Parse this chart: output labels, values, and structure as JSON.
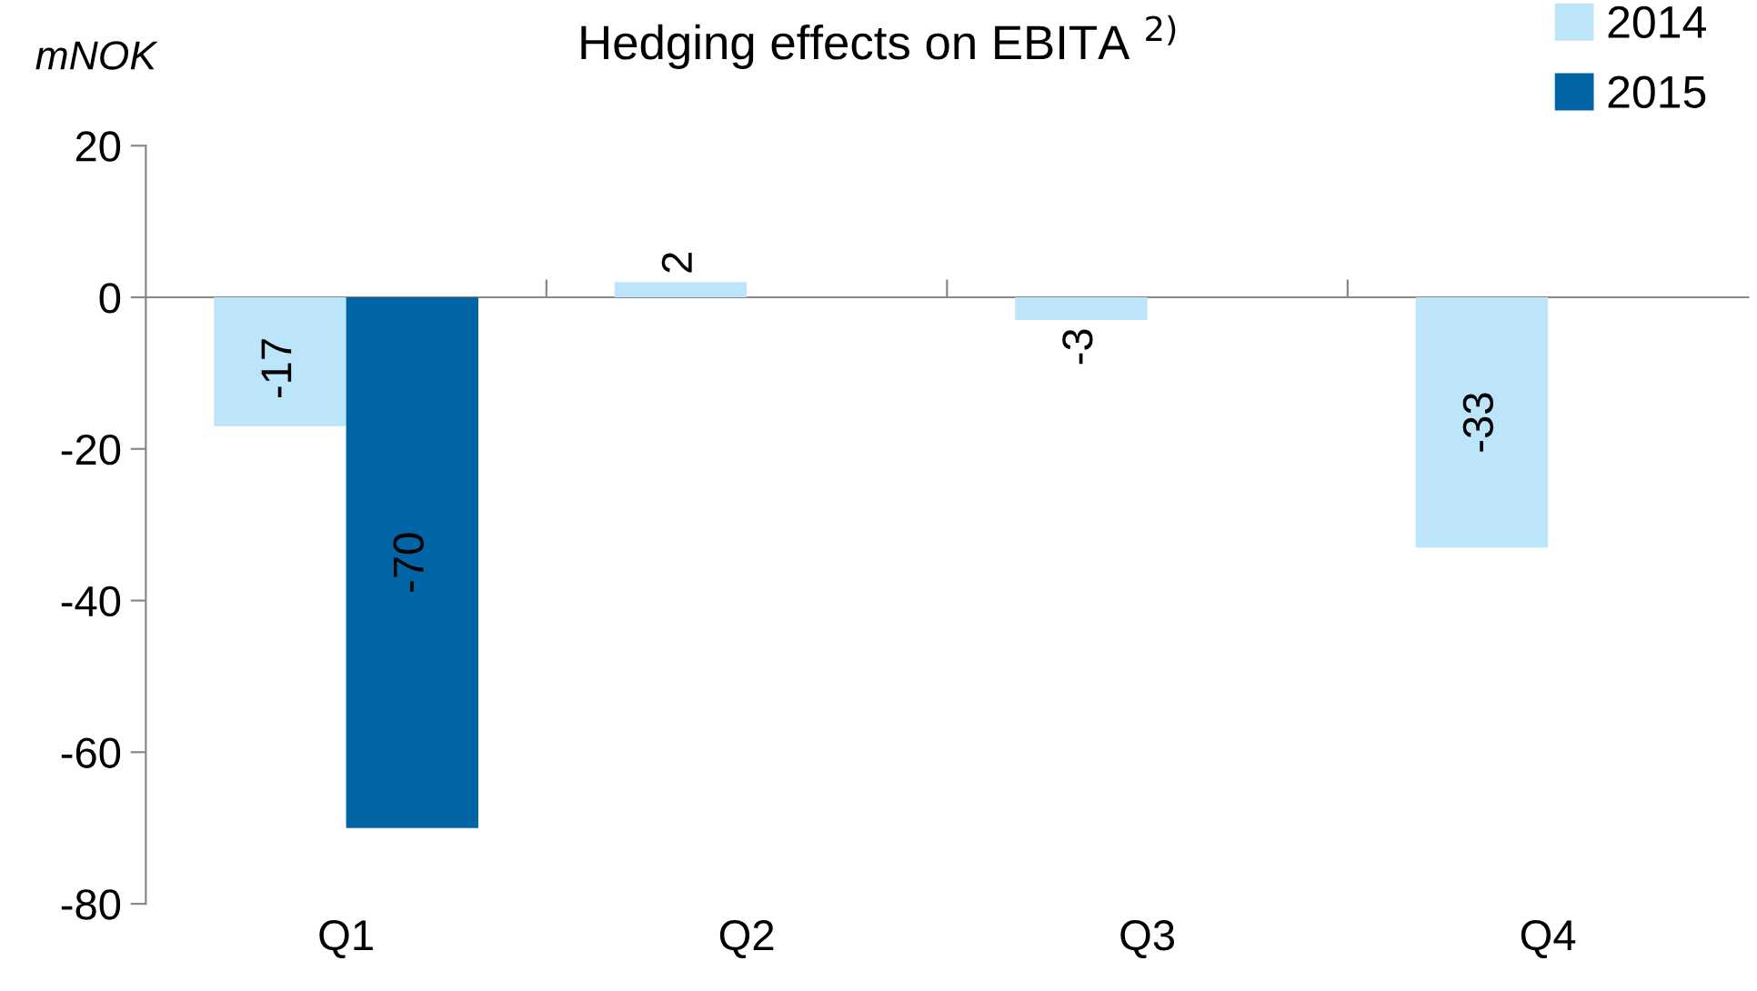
{
  "chart_data": {
    "type": "bar",
    "title": "Hedging effects on EBITA $^{2)}$",
    "ylabel": "mNOK",
    "categories": [
      "Q1",
      "Q2",
      "Q3",
      "Q4"
    ],
    "series": [
      {
        "name": "2014",
        "color": "#bde5fa",
        "values": [
          -17,
          2,
          -3,
          -33
        ]
      },
      {
        "name": "2015",
        "color": "#0064a5",
        "values": [
          -70,
          null,
          null,
          null
        ]
      }
    ],
    "ylim": [
      -80,
      20
    ],
    "yticks": [
      -80,
      -60,
      -40,
      -20,
      0,
      20
    ],
    "data_labels": true,
    "legend": "top right"
  }
}
